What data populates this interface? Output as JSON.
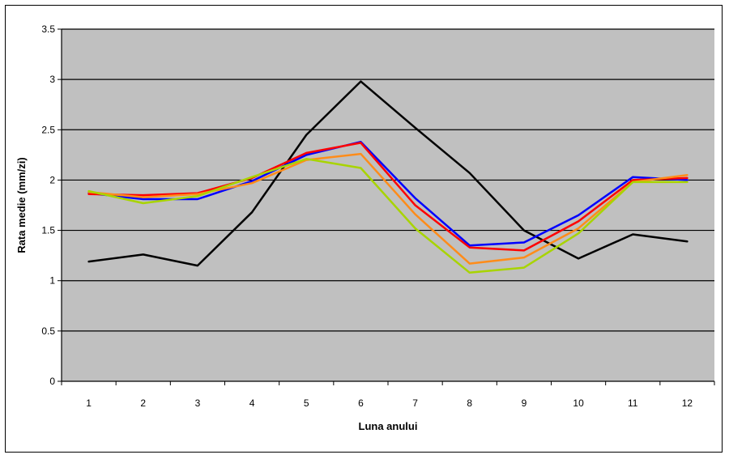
{
  "chart_data": {
    "type": "line",
    "title": "",
    "xlabel": "Luna anului",
    "ylabel": "Rata medie (mm/zi)",
    "x": [
      1,
      2,
      3,
      4,
      5,
      6,
      7,
      8,
      9,
      10,
      11,
      12
    ],
    "ylim": [
      0,
      3.5
    ],
    "yticks": [
      0,
      0.5,
      1,
      1.5,
      2,
      2.5,
      3,
      3.5
    ],
    "grid": true,
    "legend": "none",
    "plot_background": "#c0c0c0",
    "series": [
      {
        "color": "#000000",
        "values": [
          1.19,
          1.26,
          1.15,
          1.68,
          2.45,
          2.98,
          2.52,
          2.07,
          1.5,
          1.22,
          1.46,
          1.39
        ]
      },
      {
        "color": "#0000ff",
        "values": [
          1.87,
          1.81,
          1.81,
          1.99,
          2.25,
          2.38,
          1.82,
          1.35,
          1.38,
          1.65,
          2.03,
          2.0
        ]
      },
      {
        "color": "#ff0000",
        "values": [
          1.86,
          1.85,
          1.87,
          2.02,
          2.27,
          2.37,
          1.75,
          1.33,
          1.3,
          1.59,
          2.0,
          2.02
        ]
      },
      {
        "color": "#ff8c1a",
        "values": [
          1.88,
          1.83,
          1.86,
          1.97,
          2.2,
          2.26,
          1.66,
          1.17,
          1.23,
          1.52,
          1.98,
          2.05
        ]
      },
      {
        "color": "#a8d400",
        "values": [
          1.89,
          1.77,
          1.84,
          2.03,
          2.21,
          2.12,
          1.52,
          1.08,
          1.13,
          1.47,
          1.98,
          1.98
        ]
      }
    ]
  }
}
